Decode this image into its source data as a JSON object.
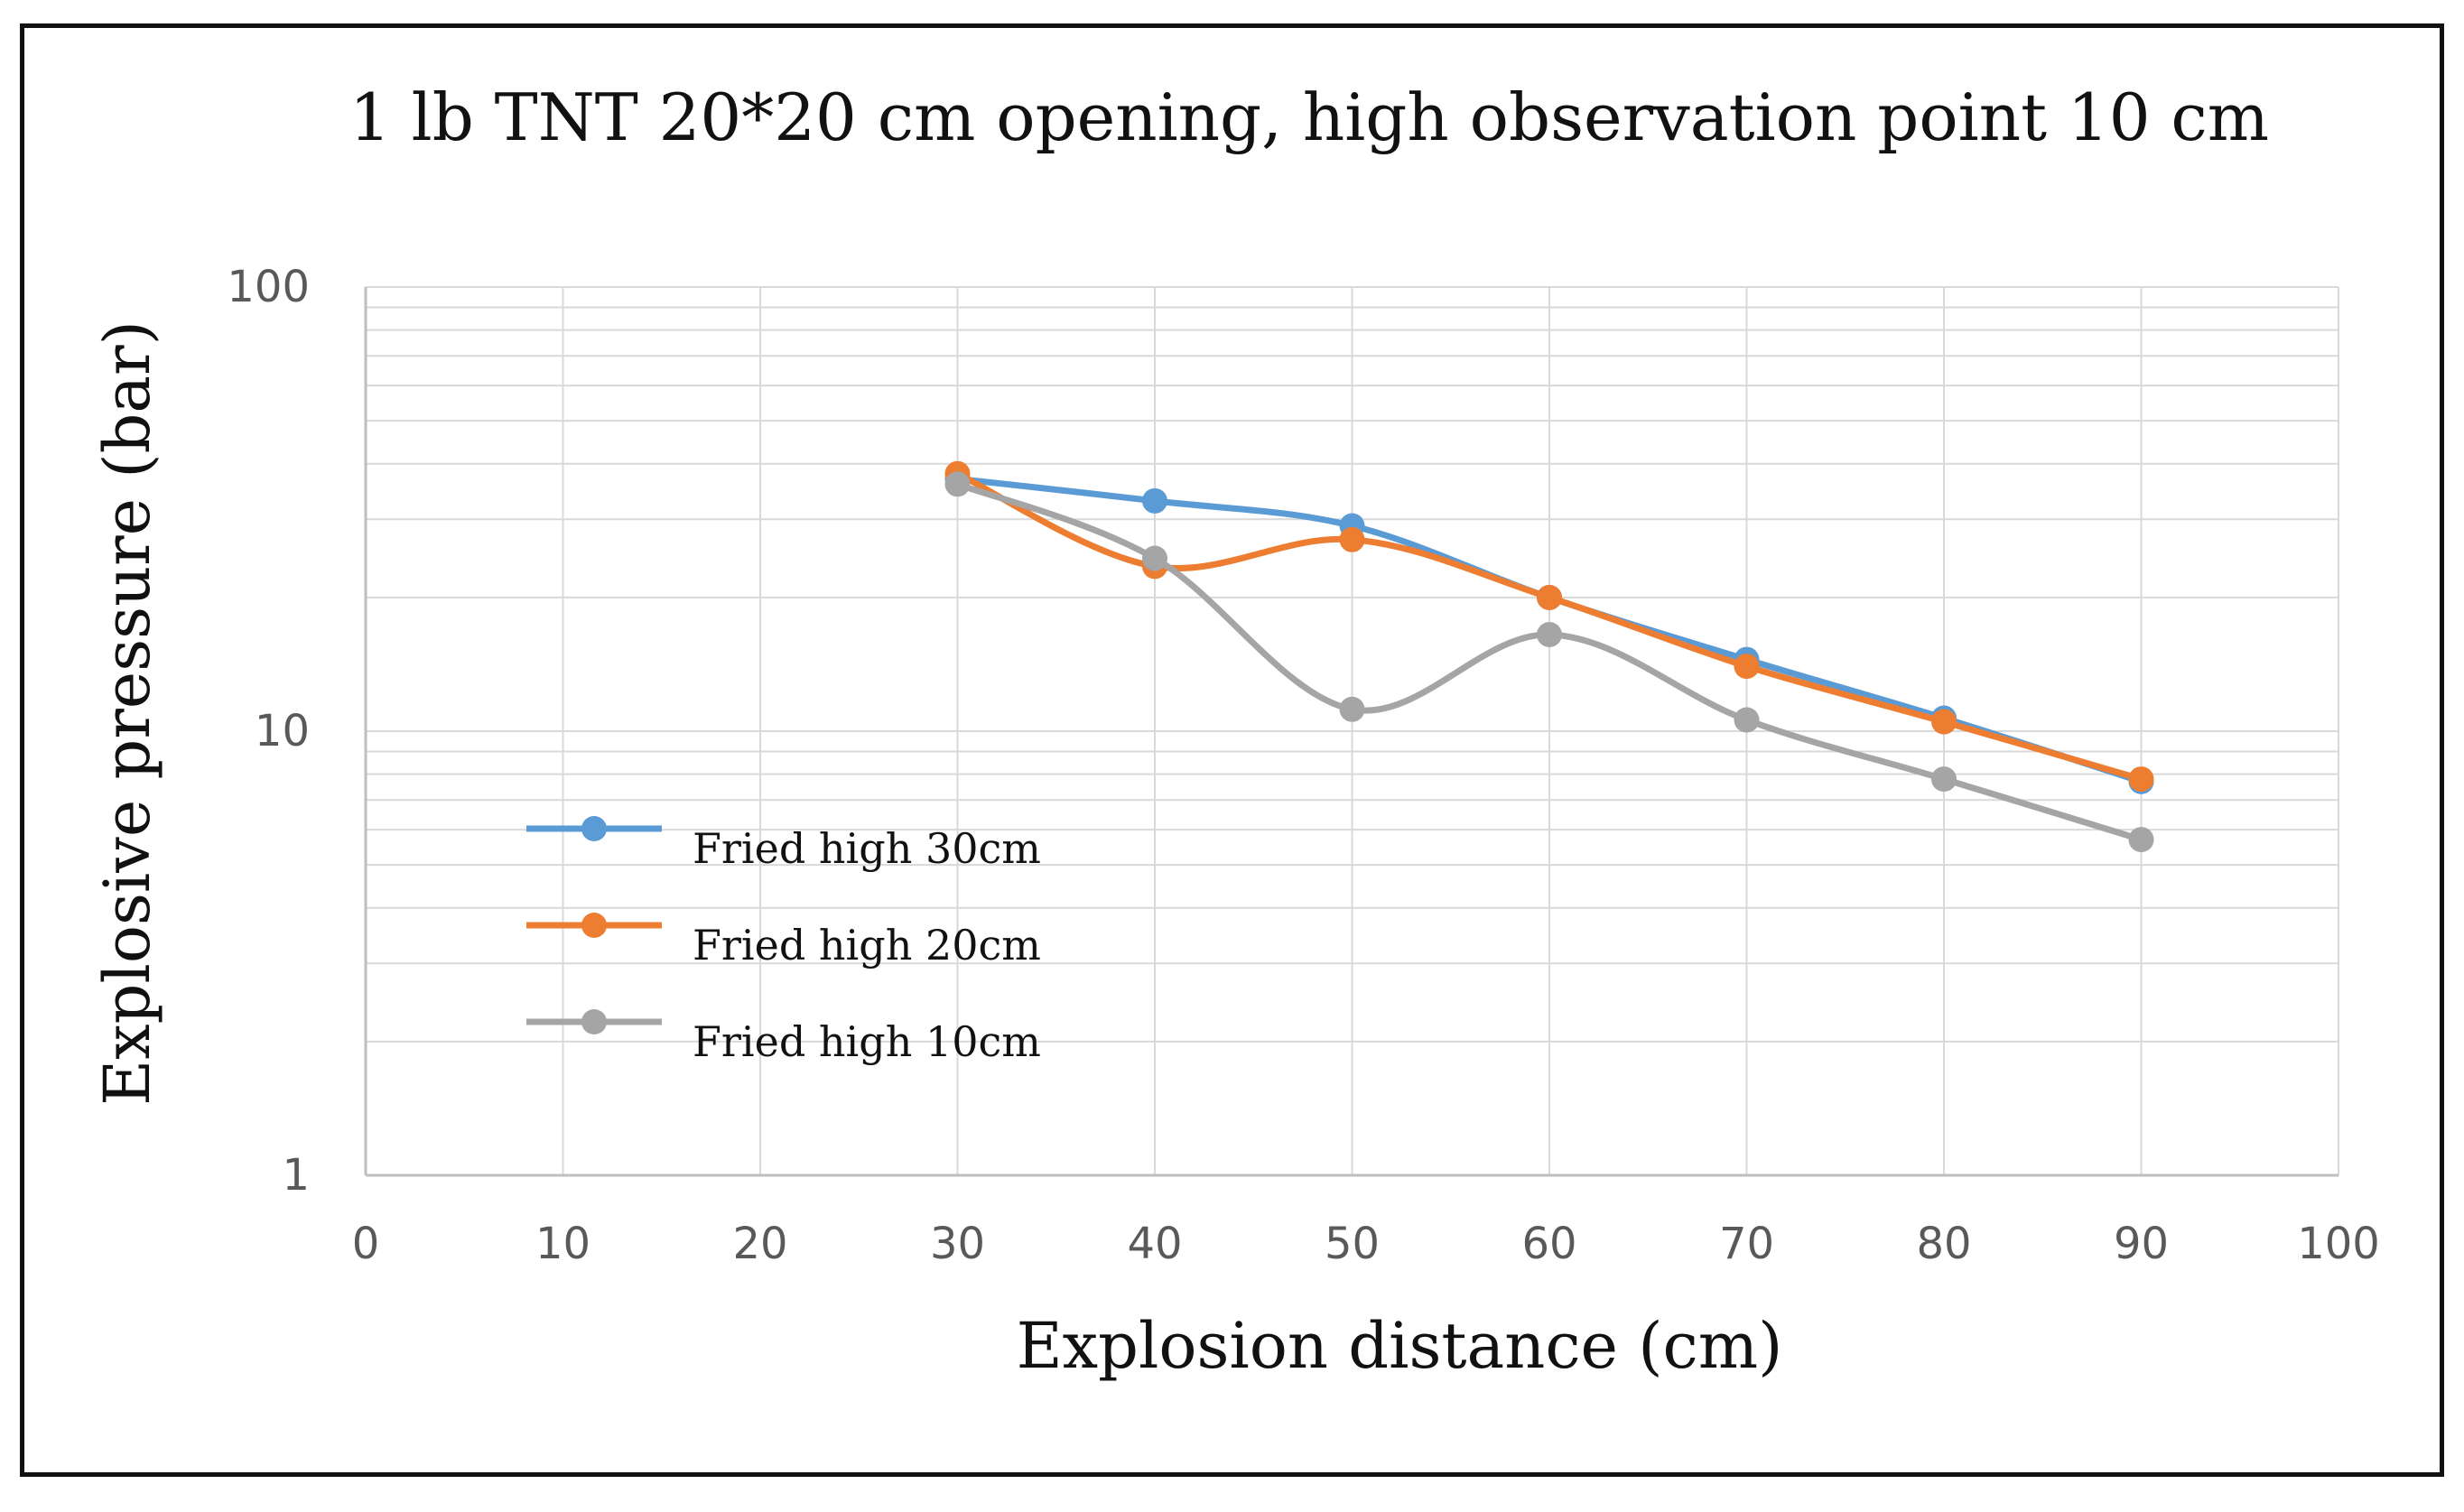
{
  "chart_data": {
    "type": "line",
    "title": "1 lb TNT 20*20 cm opening, high observation point 10 cm",
    "xlabel": "Explosion distance (cm)",
    "ylabel": "Explosive pressure (bar)",
    "xlim": [
      0,
      100
    ],
    "ylim": [
      1,
      100
    ],
    "yscale": "log",
    "x_ticks": [
      0,
      10,
      20,
      30,
      40,
      50,
      60,
      70,
      80,
      90,
      100
    ],
    "x_tick_labels": [
      "0",
      "10",
      "20",
      "30",
      "40",
      "50",
      "60",
      "70",
      "80",
      "90",
      "100"
    ],
    "y_ticks": [
      1,
      10,
      100
    ],
    "y_tick_labels": [
      "1",
      "10",
      "100"
    ],
    "grid": true,
    "legend_position": "left",
    "x": [
      30,
      40,
      50,
      60,
      70,
      80,
      90
    ],
    "series": [
      {
        "name": "Fried high 30cm",
        "color": "#5b9bd5",
        "values": [
          37,
          33,
          29,
          20,
          14.5,
          10.7,
          7.7
        ]
      },
      {
        "name": "Fried high 20cm",
        "color": "#ed7d31",
        "values": [
          38,
          23.5,
          27,
          20,
          14,
          10.5,
          7.8
        ]
      },
      {
        "name": "Fried high 10cm",
        "color": "#a5a5a5",
        "values": [
          36,
          24.5,
          11.2,
          16.5,
          10.6,
          7.8,
          5.7
        ]
      }
    ]
  }
}
